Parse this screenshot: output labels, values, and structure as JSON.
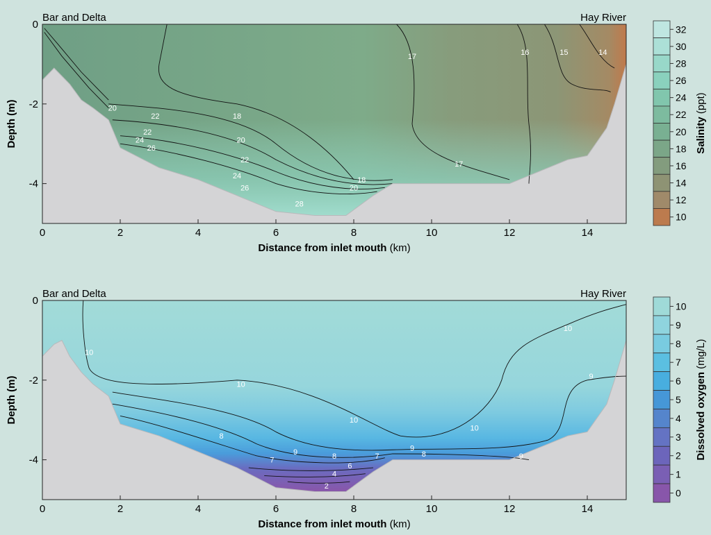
{
  "chart_data": [
    {
      "type": "heatmap",
      "title_left": "Bar and Delta",
      "title_right": "Hay River",
      "xlabel_bold": "Distance from inlet mouth",
      "xlabel_unit": "(km)",
      "ylabel": "Depth (m)",
      "xlim": [
        0,
        15
      ],
      "ylim": [
        -5,
        0
      ],
      "x_ticks": [
        "0",
        "2",
        "4",
        "6",
        "8",
        "10",
        "12",
        "14"
      ],
      "y_ticks": [
        "0",
        "-2",
        "-4"
      ],
      "colorbar": {
        "label_bold": "Salinity",
        "label_unit": "(ppt)",
        "levels": [
          "32",
          "30",
          "28",
          "26",
          "24",
          "22",
          "20",
          "18",
          "16",
          "14",
          "12",
          "10"
        ],
        "colors": [
          "#bfe6e1",
          "#ace0d7",
          "#98d8c9",
          "#8ad1bd",
          "#81c6ad",
          "#7dbb9f",
          "#79b092",
          "#7ba688",
          "#839c7e",
          "#8e9374",
          "#a08a6a",
          "#bc7b4e"
        ]
      },
      "contour_labels": [
        "20",
        "22",
        "22",
        "24",
        "26",
        "18",
        "20",
        "22",
        "24",
        "26",
        "28",
        "18",
        "20",
        "17",
        "17",
        "16",
        "15",
        "14"
      ],
      "section_profile": {
        "x_km": [
          0,
          0.3,
          0.7,
          1.0,
          1.3,
          1.7,
          2.0,
          3.0,
          4.0,
          5.0,
          6.0,
          7.0,
          7.8,
          8.5,
          9.0,
          12.0,
          12.5,
          13.5,
          14.0,
          14.5,
          14.7,
          15.0
        ],
        "bottom_depth_m": [
          -1.4,
          -1.1,
          -1.5,
          -1.9,
          -2.1,
          -2.4,
          -3.1,
          -3.6,
          -3.9,
          -4.3,
          -4.7,
          -4.8,
          -4.8,
          -4.3,
          -4.0,
          -4.0,
          -3.8,
          -3.4,
          -3.3,
          -2.6,
          -2.0,
          -1.0
        ]
      },
      "water_colors": {
        "fresh": "#8c9676",
        "mid": "#7eab89",
        "saline": "#93d4c1"
      }
    },
    {
      "type": "heatmap",
      "title_left": "Bar and Delta",
      "title_right": "Hay River",
      "xlabel_bold": "Distance from inlet mouth",
      "xlabel_unit": "(km)",
      "ylabel": "Depth (m)",
      "xlim": [
        0,
        15
      ],
      "ylim": [
        -5,
        0
      ],
      "x_ticks": [
        "0",
        "2",
        "4",
        "6",
        "8",
        "10",
        "12",
        "14"
      ],
      "y_ticks": [
        "0",
        "-2",
        "-4"
      ],
      "colorbar": {
        "label_bold": "Dissolved oxygen",
        "label_unit": "(mg/L)",
        "levels": [
          "10",
          "9",
          "8",
          "7",
          "6",
          "5",
          "4",
          "3",
          "2",
          "1",
          "0"
        ],
        "colors": [
          "#9fdad8",
          "#8fd4de",
          "#79cbe0",
          "#5bbfe1",
          "#48aedf",
          "#4697d7",
          "#5585cc",
          "#6473c3",
          "#6c65bb",
          "#7a5fb4",
          "#8856aa"
        ]
      },
      "contour_labels": [
        "10",
        "10",
        "10",
        "10",
        "10",
        "9",
        "9",
        "8",
        "8",
        "8",
        "7",
        "7",
        "9",
        "9",
        "6",
        "4",
        "2"
      ],
      "section_profile": {
        "x_km": [
          0,
          0.3,
          0.5,
          0.7,
          1.0,
          1.3,
          1.7,
          2.0,
          3.0,
          4.0,
          5.0,
          6.0,
          7.0,
          7.8,
          8.5,
          9.0,
          12.0,
          12.5,
          13.5,
          14.0,
          14.5,
          14.7,
          15.0
        ],
        "bottom_depth_m": [
          -1.4,
          -1.1,
          -1.0,
          -1.4,
          -1.8,
          -2.1,
          -2.4,
          -3.1,
          -3.4,
          -3.8,
          -4.2,
          -4.7,
          -4.8,
          -4.8,
          -4.3,
          -4.0,
          -4.0,
          -3.8,
          -3.4,
          -3.3,
          -2.6,
          -2.0,
          -1.0
        ]
      },
      "water_colors": {
        "surface": "#9fd9d6",
        "mid": "#7dcbe0",
        "deep": "#4aa6df",
        "anoxic": "#7c5cb4"
      }
    }
  ]
}
